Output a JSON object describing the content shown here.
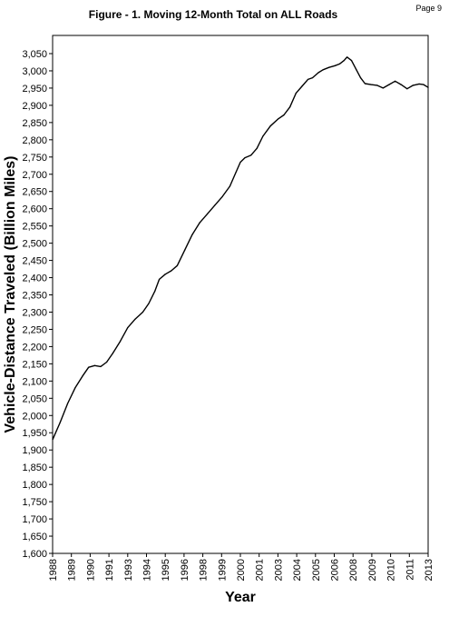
{
  "page": {
    "number_label": "Page 9"
  },
  "chart_data": {
    "type": "line",
    "title": "Figure - 1.  Moving 12-Month Total on ALL Roads",
    "xlabel": "Year",
    "ylabel": "Vehicle-Distance Traveled (Billion Miles)",
    "xlim": [
      1988,
      2013
    ],
    "ylim": [
      1600,
      3050
    ],
    "grid": false,
    "legend": "none",
    "line_color": "#000000",
    "x_tick_labels": [
      "1988",
      "1989",
      "1990",
      "1991",
      "1993",
      "1994",
      "1995",
      "1996",
      "1998",
      "1999",
      "2000",
      "2001",
      "2003",
      "2004",
      "2005",
      "2006",
      "2008",
      "2009",
      "2010",
      "2011",
      "2013"
    ],
    "y_ticks": [
      1600,
      1650,
      1700,
      1750,
      1800,
      1850,
      1900,
      1950,
      2000,
      2050,
      2100,
      2150,
      2200,
      2250,
      2300,
      2350,
      2400,
      2450,
      2500,
      2550,
      2600,
      2650,
      2700,
      2750,
      2800,
      2850,
      2900,
      2950,
      3000,
      3050
    ],
    "y_tick_labels": [
      "1,600",
      "1,650",
      "1,700",
      "1,750",
      "1,800",
      "1,850",
      "1,900",
      "1,950",
      "2,000",
      "2,050",
      "2,100",
      "2,150",
      "2,200",
      "2,250",
      "2,300",
      "2,350",
      "2,400",
      "2,450",
      "2,500",
      "2,550",
      "2,600",
      "2,650",
      "2,700",
      "2,750",
      "2,800",
      "2,850",
      "2,900",
      "2,950",
      "3,000",
      "3,050"
    ],
    "series": [
      {
        "x": [
          1988.0,
          1988.5,
          1989.0,
          1989.5,
          1990.0,
          1990.4,
          1990.8,
          1991.2,
          1991.6,
          1992.0,
          1992.5,
          1993.0,
          1993.5,
          1994.0,
          1994.4,
          1994.8,
          1995.1,
          1995.5,
          1995.9,
          1996.3,
          1996.8,
          1997.3,
          1997.8,
          1998.3,
          1998.8,
          1999.3,
          1999.8,
          2000.2,
          2000.5,
          2000.8,
          2001.2,
          2001.6,
          2002.0,
          2002.5,
          2003.0,
          2003.4,
          2003.8,
          2004.2,
          2004.6,
          2005.0,
          2005.3,
          2005.7,
          2006.0,
          2006.4,
          2006.8,
          2007.1,
          2007.4,
          2007.6,
          2007.9,
          2008.2,
          2008.5,
          2008.8,
          2009.2,
          2009.6,
          2010.0,
          2010.4,
          2010.8,
          2011.2,
          2011.6,
          2012.0,
          2012.4,
          2012.7,
          2013.0
        ],
        "y": [
          1930,
          1980,
          2035,
          2080,
          2115,
          2140,
          2145,
          2142,
          2155,
          2180,
          2215,
          2255,
          2280,
          2300,
          2325,
          2360,
          2395,
          2410,
          2420,
          2435,
          2480,
          2525,
          2560,
          2585,
          2610,
          2635,
          2665,
          2705,
          2735,
          2748,
          2755,
          2775,
          2810,
          2840,
          2860,
          2872,
          2895,
          2935,
          2955,
          2975,
          2980,
          2995,
          3003,
          3010,
          3015,
          3020,
          3030,
          3040,
          3030,
          3005,
          2980,
          2963,
          2960,
          2958,
          2950,
          2960,
          2970,
          2960,
          2948,
          2958,
          2962,
          2960,
          2952
        ],
        "values": [
          1930,
          1980,
          2035,
          2080,
          2115,
          2140,
          2145,
          2142,
          2155,
          2180,
          2215,
          2255,
          2280,
          2300,
          2325,
          2360,
          2395,
          2410,
          2420,
          2435,
          2480,
          2525,
          2560,
          2585,
          2610,
          2635,
          2665,
          2705,
          2735,
          2748,
          2755,
          2775,
          2810,
          2840,
          2860,
          2872,
          2895,
          2935,
          2955,
          2975,
          2980,
          2995,
          3003,
          3010,
          3015,
          3020,
          3030,
          3040,
          3030,
          3005,
          2980,
          2963,
          2960,
          2958,
          2950,
          2960,
          2970,
          2960,
          2948,
          2958,
          2962,
          2960,
          2952
        ]
      }
    ]
  }
}
